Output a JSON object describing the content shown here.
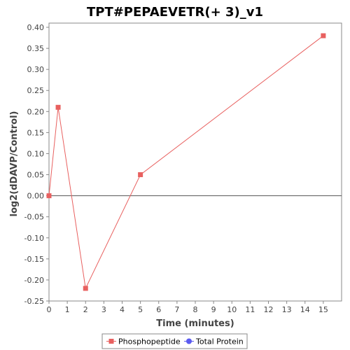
{
  "chart_data": {
    "type": "line",
    "title": "TPT#PEPAEVETR(+ 3)_v1",
    "xlabel": "Time (minutes)",
    "ylabel": "log2(dDAVP/Control)",
    "xlim": [
      0,
      16
    ],
    "ylim": [
      -0.25,
      0.41
    ],
    "x_ticks": [
      0,
      1,
      2,
      3,
      4,
      5,
      6,
      7,
      8,
      9,
      10,
      11,
      12,
      13,
      14,
      15
    ],
    "y_ticks": [
      -0.25,
      -0.2,
      -0.15,
      -0.1,
      -0.05,
      0.0,
      0.05,
      0.1,
      0.15,
      0.2,
      0.25,
      0.3,
      0.35,
      0.4
    ],
    "y_tick_labels": [
      "-0.25",
      "-0.20",
      "-0.15",
      "-0.10",
      "-0.05",
      "0.00",
      "0.05",
      "0.10",
      "0.15",
      "0.20",
      "0.25",
      "0.30",
      "0.35",
      "0.40"
    ],
    "zero_line": true,
    "grid": false,
    "legend_position": "bottom",
    "series": [
      {
        "name": "Phosphopeptide",
        "color": "#e8605f",
        "marker": "square",
        "x": [
          0,
          0.5,
          2,
          5,
          15
        ],
        "y": [
          0.0,
          0.21,
          -0.22,
          0.05,
          0.38
        ]
      }
    ],
    "legend": [
      {
        "label": "Phosphopeptide",
        "color": "#e8605f",
        "marker": "square"
      },
      {
        "label": "Total Protein",
        "color": "#5b5bf0",
        "marker": "circle"
      }
    ]
  }
}
